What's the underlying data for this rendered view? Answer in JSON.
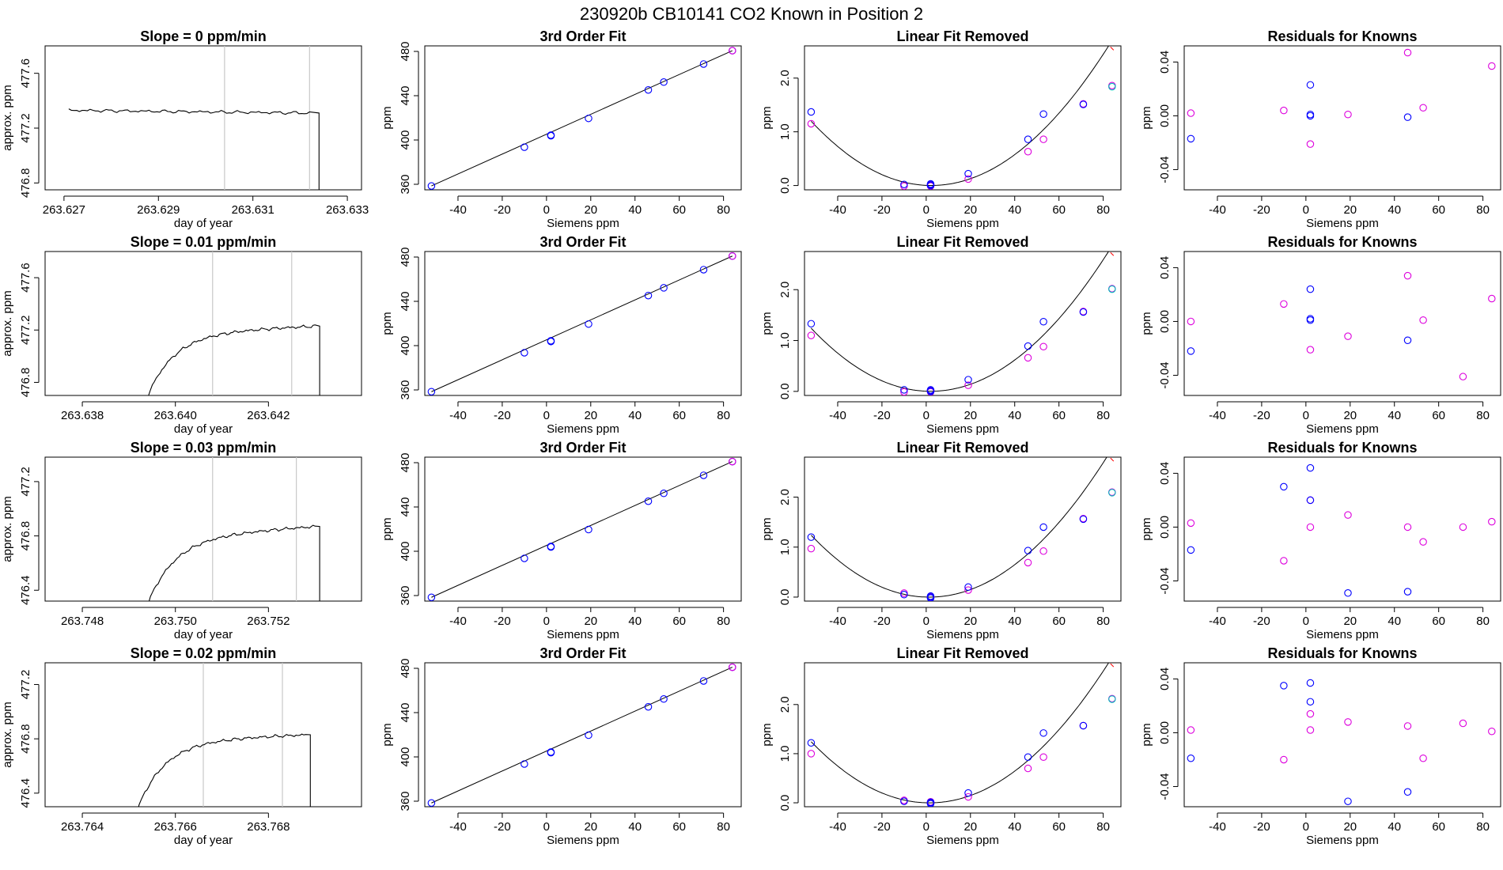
{
  "page": {
    "title": "230920b      CB10141    CO2 Known in Position  2"
  },
  "colors": {
    "line": "#000000",
    "blue": "#0000ff",
    "magenta": "#dd00dd",
    "cyan": "#00bbbb",
    "red": "#ff0000",
    "refline": "#c8c8c8"
  },
  "siemens_x": [
    -52,
    -10,
    2,
    2,
    2,
    19,
    46,
    53,
    71,
    84
  ],
  "x_ticks": [
    -40,
    -20,
    0,
    20,
    40,
    60,
    80
  ],
  "x_label": "Siemens ppm",
  "chart_data": [
    {
      "type": "line",
      "panel": "timeseries",
      "row": 1,
      "title": "Slope =  0  ppm/min",
      "xlabel": "day of year",
      "ylabel": "approx. ppm",
      "xlim": [
        263.6266,
        263.6333
      ],
      "ylim": [
        476.75,
        477.8
      ],
      "x_ticks": [
        263.627,
        263.629,
        263.631,
        263.633
      ],
      "x_tick_labels": [
        "263.627",
        "263.629",
        "263.631",
        "263.633"
      ],
      "y_ticks": [
        476.8,
        477.2,
        477.6
      ],
      "y_tick_labels": [
        "476.8",
        "477.2",
        "477.6"
      ],
      "vlines": [
        263.6304,
        263.6322
      ],
      "x_start": 263.6271,
      "x_end": 263.6322,
      "x_drop": 263.6324,
      "level_start": 477.33,
      "level_end": 477.31,
      "drop_to": 476.6,
      "ramp_from": null
    },
    {
      "type": "line",
      "panel": "timeseries",
      "row": 2,
      "title": "Slope =  0.01  ppm/min",
      "xlabel": "day of year",
      "ylabel": "approx. ppm",
      "xlim": [
        263.6372,
        263.644
      ],
      "ylim": [
        476.7,
        477.8
      ],
      "x_ticks": [
        263.638,
        263.64,
        263.642
      ],
      "x_tick_labels": [
        "263.638",
        "263.640",
        "263.642"
      ],
      "y_ticks": [
        476.8,
        477.2,
        477.6
      ],
      "y_tick_labels": [
        "476.8",
        "477.2",
        "477.6"
      ],
      "vlines": [
        263.6408,
        263.6425
      ],
      "x_start": 263.6393,
      "x_end": 263.643,
      "x_drop": 263.6431,
      "level_start": 477.17,
      "level_end": 477.23,
      "drop_to": 476.6,
      "ramp_from": 476.6
    },
    {
      "type": "line",
      "panel": "timeseries",
      "row": 3,
      "title": "Slope =  0.03  ppm/min",
      "xlabel": "day of year",
      "ylabel": "approx. ppm",
      "xlim": [
        263.7472,
        263.754
      ],
      "ylim": [
        476.32,
        477.38
      ],
      "x_ticks": [
        263.748,
        263.75,
        263.752
      ],
      "x_tick_labels": [
        "263.748",
        "263.750",
        "263.752"
      ],
      "y_ticks": [
        476.4,
        476.8,
        477.2
      ],
      "y_tick_labels": [
        "476.4",
        "476.8",
        "477.2"
      ],
      "vlines": [
        263.7508,
        263.7526
      ],
      "x_start": 263.7493,
      "x_end": 263.753,
      "x_drop": 263.7531,
      "level_start": 476.78,
      "level_end": 476.87,
      "drop_to": 476.2,
      "ramp_from": 476.2
    },
    {
      "type": "line",
      "panel": "timeseries",
      "row": 4,
      "title": "Slope =  0.02  ppm/min",
      "xlabel": "day of year",
      "ylabel": "approx. ppm",
      "xlim": [
        263.7632,
        263.77
      ],
      "ylim": [
        476.3,
        477.36
      ],
      "x_ticks": [
        263.764,
        263.766,
        263.768
      ],
      "x_tick_labels": [
        "263.764",
        "263.766",
        "263.768"
      ],
      "y_ticks": [
        476.4,
        476.8,
        477.2
      ],
      "y_tick_labels": [
        "476.4",
        "476.8",
        "477.2"
      ],
      "vlines": [
        263.7666,
        263.7683
      ],
      "x_start": 263.7651,
      "x_end": 263.7688,
      "x_drop": 263.7689,
      "level_start": 476.78,
      "level_end": 476.83,
      "drop_to": 476.2,
      "ramp_from": 476.2
    },
    {
      "type": "scatter",
      "panel": "fit",
      "row": 1,
      "title": "3rd Order Fit",
      "xlabel": "Siemens ppm",
      "ylabel": "ppm",
      "xlim": [
        -55,
        88
      ],
      "ylim": [
        355,
        485
      ],
      "y_ticks": [
        360,
        400,
        440,
        480
      ],
      "y": [
        358.5,
        393.5,
        403.8,
        404.1,
        404.4,
        419.5,
        445.2,
        452.3,
        468.6,
        480.7
      ]
    },
    {
      "type": "scatter",
      "panel": "fit",
      "row": 2,
      "title": "3rd Order Fit",
      "xlabel": "Siemens ppm",
      "ylabel": "ppm",
      "xlim": [
        -55,
        88
      ],
      "ylim": [
        355,
        485
      ],
      "y_ticks": [
        360,
        400,
        440,
        480
      ],
      "y": [
        358.4,
        393.6,
        403.7,
        404.1,
        404.4,
        419.5,
        445.2,
        452.2,
        468.6,
        480.9
      ]
    },
    {
      "type": "scatter",
      "panel": "fit",
      "row": 3,
      "title": "3rd Order Fit",
      "xlabel": "Siemens ppm",
      "ylabel": "ppm",
      "xlim": [
        -55,
        88
      ],
      "ylim": [
        355,
        485
      ],
      "y_ticks": [
        360,
        400,
        440,
        480
      ],
      "y": [
        358.4,
        393.6,
        403.8,
        404.1,
        404.4,
        419.6,
        445.2,
        452.3,
        468.6,
        481.0
      ]
    },
    {
      "type": "scatter",
      "panel": "fit",
      "row": 4,
      "title": "3rd Order Fit",
      "xlabel": "Siemens ppm",
      "ylabel": "ppm",
      "xlim": [
        -55,
        88
      ],
      "ylim": [
        355,
        485
      ],
      "y_ticks": [
        360,
        400,
        440,
        480
      ],
      "y": [
        358.4,
        393.6,
        403.8,
        404.1,
        404.4,
        419.6,
        445.2,
        452.3,
        468.6,
        481.0
      ]
    },
    {
      "type": "scatter",
      "panel": "linfit",
      "row": 1,
      "title": "Linear Fit Removed",
      "xlabel": "Siemens ppm",
      "ylabel": "ppm",
      "xlim": [
        -55,
        88
      ],
      "ylim": [
        -0.08,
        2.6
      ],
      "y_ticks": [
        0.0,
        1.0,
        2.0
      ],
      "y_tick_labels": [
        "0.0",
        "1.0",
        "2.0"
      ],
      "curve": {
        "a": 0.000405,
        "b": -0.0019,
        "c": 0.003,
        "x_end": 84
      },
      "blue_y": [
        1.37,
        0.02,
        0.0,
        0.03,
        0.01,
        0.22,
        0.86,
        1.33,
        1.51,
        1.82
      ],
      "magenta_y": [
        1.15,
        -0.01,
        0.01,
        0.02,
        -0.01,
        0.12,
        0.63,
        0.86,
        1.52,
        1.86
      ],
      "cyan_y": 1.84,
      "red_top_y": 2.55
    },
    {
      "type": "scatter",
      "panel": "linfit",
      "row": 2,
      "title": "Linear Fit Removed",
      "xlabel": "Siemens ppm",
      "ylabel": "ppm",
      "xlim": [
        -55,
        88
      ],
      "ylim": [
        -0.08,
        2.75
      ],
      "y_ticks": [
        0.0,
        1.0,
        2.0
      ],
      "y_tick_labels": [
        "0.0",
        "1.0",
        "2.0"
      ],
      "curve": {
        "a": 0.000425,
        "b": -0.0017,
        "c": 0.004,
        "x_end": 84
      },
      "blue_y": [
        1.33,
        0.03,
        0.0,
        0.03,
        0.01,
        0.23,
        0.89,
        1.37,
        1.56,
        2.0
      ],
      "magenta_y": [
        1.1,
        -0.01,
        0.02,
        0.01,
        -0.01,
        0.12,
        0.66,
        0.88,
        1.57,
        2.02
      ],
      "cyan_y": 2.01,
      "red_top_y": 2.7
    },
    {
      "type": "scatter",
      "panel": "linfit",
      "row": 3,
      "title": "Linear Fit Removed",
      "xlabel": "Siemens ppm",
      "ylabel": "ppm",
      "xlim": [
        -55,
        88
      ],
      "ylim": [
        -0.08,
        2.8
      ],
      "y_ticks": [
        0.0,
        1.0,
        2.0
      ],
      "y_tick_labels": [
        "0.0",
        "1.0",
        "2.0"
      ],
      "curve": {
        "a": 0.000435,
        "b": -0.0012,
        "c": 0.0,
        "x_end": 84
      },
      "blue_y": [
        1.2,
        0.05,
        0.0,
        0.02,
        -0.02,
        0.2,
        0.93,
        1.4,
        1.56,
        2.08
      ],
      "magenta_y": [
        0.97,
        0.08,
        0.01,
        -0.01,
        0.0,
        0.14,
        0.69,
        0.92,
        1.57,
        2.1
      ],
      "cyan_y": 2.09,
      "red_top_y": 2.75
    },
    {
      "type": "scatter",
      "panel": "linfit",
      "row": 4,
      "title": "Linear Fit Removed",
      "xlabel": "Siemens ppm",
      "ylabel": "ppm",
      "xlim": [
        -55,
        88
      ],
      "ylim": [
        -0.08,
        2.85
      ],
      "y_ticks": [
        0.0,
        1.0,
        2.0
      ],
      "y_tick_labels": [
        "0.0",
        "1.0",
        "2.0"
      ],
      "curve": {
        "a": 0.000435,
        "b": -0.0013,
        "c": 0.0,
        "x_end": 84
      },
      "blue_y": [
        1.22,
        0.03,
        0.0,
        0.01,
        -0.02,
        0.2,
        0.93,
        1.42,
        1.57,
        2.1
      ],
      "magenta_y": [
        1.0,
        0.05,
        0.02,
        0.0,
        -0.01,
        0.12,
        0.7,
        0.93,
        1.57,
        2.12
      ],
      "cyan_y": 2.11,
      "red_top_y": 2.8
    },
    {
      "type": "scatter",
      "panel": "residuals",
      "row": 1,
      "title": "Residuals for Knowns",
      "xlabel": "Siemens ppm",
      "ylabel": "ppm",
      "xlim": [
        -55,
        88
      ],
      "ylim": [
        -0.055,
        0.052
      ],
      "y_ticks": [
        -0.04,
        0.0,
        0.04
      ],
      "y_tick_labels": [
        "-0.04",
        "0.00",
        "0.04"
      ],
      "blue_pts": [
        [
          -52,
          -0.017
        ],
        [
          2,
          0.023
        ],
        [
          2,
          0.0
        ],
        [
          2,
          0.001
        ],
        [
          46,
          -0.001
        ]
      ],
      "magenta_pts": [
        [
          -52,
          0.002
        ],
        [
          -10,
          0.004
        ],
        [
          2,
          -0.021
        ],
        [
          19,
          0.001
        ],
        [
          46,
          0.047
        ],
        [
          53,
          0.006
        ],
        [
          84,
          0.037
        ]
      ]
    },
    {
      "type": "scatter",
      "panel": "residuals",
      "row": 2,
      "title": "Residuals for Knowns",
      "xlabel": "Siemens ppm",
      "ylabel": "ppm",
      "xlim": [
        -55,
        88
      ],
      "ylim": [
        -0.055,
        0.052
      ],
      "y_ticks": [
        -0.04,
        0.0,
        0.04
      ],
      "y_tick_labels": [
        "-0.04",
        "0.00",
        "0.04"
      ],
      "blue_pts": [
        [
          -52,
          -0.022
        ],
        [
          2,
          0.024
        ],
        [
          2,
          0.001
        ],
        [
          2,
          0.002
        ],
        [
          46,
          -0.014
        ]
      ],
      "magenta_pts": [
        [
          -52,
          0.0
        ],
        [
          -10,
          0.013
        ],
        [
          2,
          -0.021
        ],
        [
          19,
          -0.011
        ],
        [
          46,
          0.034
        ],
        [
          53,
          0.001
        ],
        [
          71,
          -0.041
        ],
        [
          84,
          0.017
        ]
      ]
    },
    {
      "type": "scatter",
      "panel": "residuals",
      "row": 3,
      "title": "Residuals for Knowns",
      "xlabel": "Siemens ppm",
      "ylabel": "ppm",
      "xlim": [
        -55,
        88
      ],
      "ylim": [
        -0.055,
        0.052
      ],
      "y_ticks": [
        -0.04,
        0.0,
        0.04
      ],
      "y_tick_labels": [
        "-0.04",
        "0.00",
        "0.04"
      ],
      "blue_pts": [
        [
          -52,
          -0.017
        ],
        [
          -10,
          0.03
        ],
        [
          2,
          0.044
        ],
        [
          2,
          0.02
        ],
        [
          19,
          -0.049
        ],
        [
          46,
          -0.048
        ]
      ],
      "magenta_pts": [
        [
          -52,
          0.003
        ],
        [
          -10,
          -0.025
        ],
        [
          2,
          0.02
        ],
        [
          2,
          0.0
        ],
        [
          19,
          0.009
        ],
        [
          46,
          0.0
        ],
        [
          53,
          -0.011
        ],
        [
          71,
          0.0
        ],
        [
          84,
          0.004
        ]
      ]
    },
    {
      "type": "scatter",
      "panel": "residuals",
      "row": 4,
      "title": "Residuals for Knowns",
      "xlabel": "Siemens ppm",
      "ylabel": "ppm",
      "xlim": [
        -55,
        88
      ],
      "ylim": [
        -0.055,
        0.052
      ],
      "y_ticks": [
        -0.04,
        0.0,
        0.04
      ],
      "y_tick_labels": [
        "-0.04",
        "0.00",
        "0.04"
      ],
      "blue_pts": [
        [
          -52,
          -0.019
        ],
        [
          -10,
          0.035
        ],
        [
          2,
          0.037
        ],
        [
          2,
          0.023
        ],
        [
          19,
          -0.051
        ],
        [
          46,
          -0.044
        ]
      ],
      "magenta_pts": [
        [
          -52,
          0.002
        ],
        [
          -10,
          -0.02
        ],
        [
          2,
          0.014
        ],
        [
          2,
          0.002
        ],
        [
          19,
          0.008
        ],
        [
          46,
          0.005
        ],
        [
          53,
          -0.019
        ],
        [
          71,
          0.007
        ],
        [
          84,
          0.001
        ]
      ]
    }
  ]
}
